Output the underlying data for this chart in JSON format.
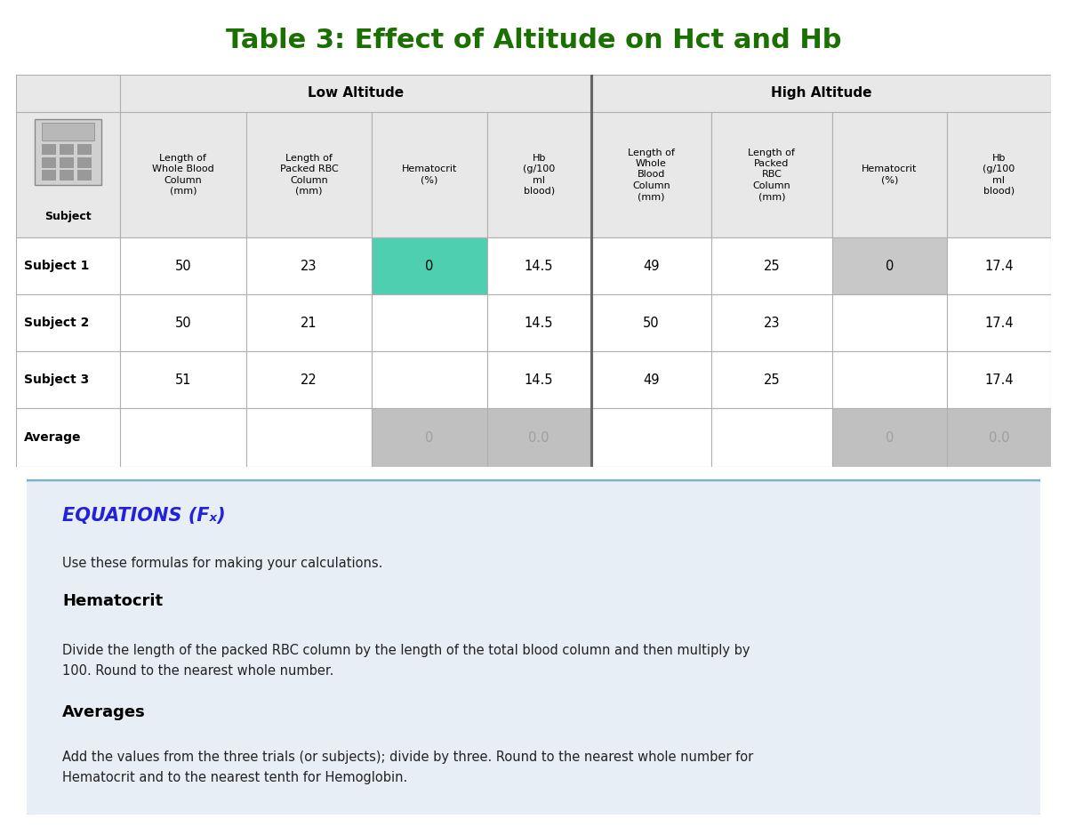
{
  "title": "Table 3: Effect of Altitude on Hct and Hb",
  "title_color": "#1a7000",
  "title_fontsize": 22,
  "col_header_row2": [
    "Subject",
    "Length of\nWhole Blood\nColumn\n(mm)",
    "Length of\nPacked RBC\nColumn\n(mm)",
    "Hematocrit\n(%)",
    "Hb\n(g/100\nml\nblood)",
    "Length of\nWhole\nBlood\nColumn\n(mm)",
    "Length of\nPacked\nRBC\nColumn\n(mm)",
    "Hematocrit\n(%)",
    "Hb\n(g/100\nml\nblood)"
  ],
  "rows": [
    [
      "Subject 1",
      "50",
      "23",
      "0",
      "14.5",
      "49",
      "25",
      "0",
      "17.4"
    ],
    [
      "Subject 2",
      "50",
      "21",
      "",
      "14.5",
      "50",
      "23",
      "",
      "17.4"
    ],
    [
      "Subject 3",
      "51",
      "22",
      "",
      "14.5",
      "49",
      "25",
      "",
      "17.4"
    ],
    [
      "Average",
      "",
      "",
      "0",
      "0.0",
      "",
      "",
      "0",
      "0.0"
    ]
  ],
  "teal_color": "#4dcfb0",
  "gray_highlight": "#c8c8c8",
  "avg_gray": "#c0c0c0",
  "avg_text_color": "#a0a0a0",
  "header_bg": "#e8e8e8",
  "white_bg": "#ffffff",
  "border_color": "#b0b0b0",
  "separator_color": "#666666",
  "equations_title": "EQUATIONS (Fₓ)",
  "equations_title_color": "#2222dd",
  "equations_bg": "#e8eef5",
  "equations_border": "#7ab0d4",
  "hematocrit_header": "Hematocrit",
  "hematocrit_text": "Divide the length of the packed RBC column by the length of the total blood column and then multiply by\n100. Round to the nearest whole number.",
  "averages_header": "Averages",
  "averages_text": "Add the values from the three trials (or subjects); divide by three. Round to the nearest whole number for\nHematocrit and to the nearest tenth for Hemoglobin.",
  "use_text": "Use these formulas for making your calculations."
}
